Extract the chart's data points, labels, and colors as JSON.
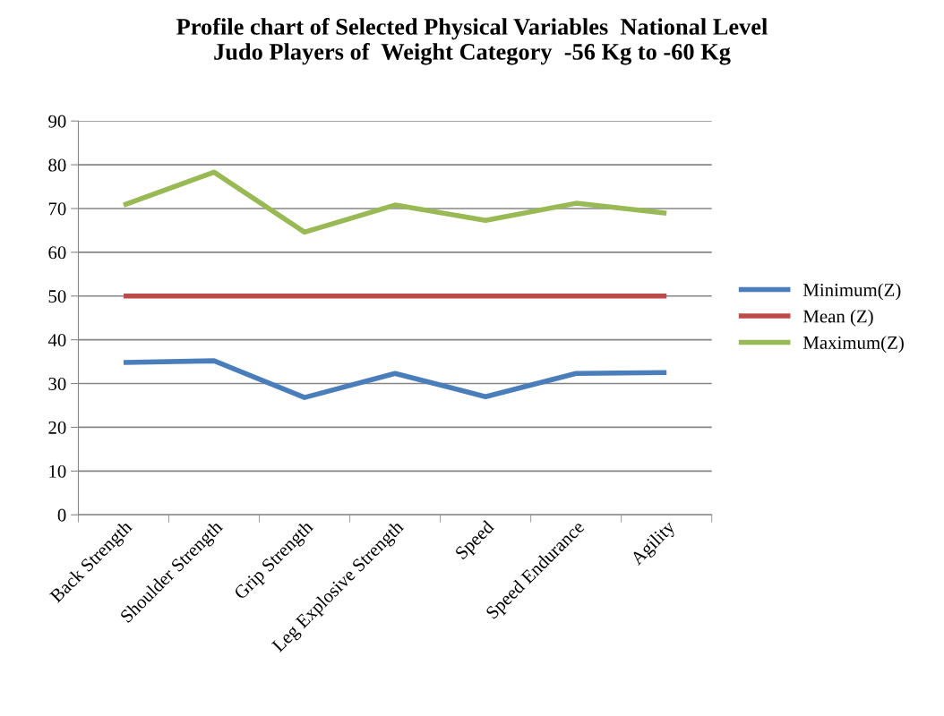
{
  "chart_data": {
    "type": "line",
    "title": "Profile chart of Selected Physical Variables  National Level\nJudo Players of  Weight Category  -56 Kg to -60 Kg",
    "categories": [
      "Back Strength",
      "Shoulder Strength",
      "Grip Strength",
      "Leg Explosive Strength",
      "Speed",
      "Speed Endurance",
      "Agility"
    ],
    "series": [
      {
        "name": "Minimum(Z)",
        "color": "#4a7ebb",
        "values": [
          34.8,
          35.2,
          26.8,
          32.3,
          27.0,
          32.3,
          32.5
        ]
      },
      {
        "name": "Mean (Z)",
        "color": "#be4b48",
        "values": [
          50,
          50,
          50,
          50,
          50,
          50,
          50
        ]
      },
      {
        "name": "Maximum(Z)",
        "color": "#98b954",
        "values": [
          70.8,
          78.3,
          64.6,
          70.8,
          67.3,
          71.2,
          68.9
        ]
      }
    ],
    "ylim": [
      0,
      90
    ],
    "yticks": [
      0,
      10,
      20,
      30,
      40,
      50,
      60,
      70,
      80,
      90
    ],
    "grid": "y",
    "legend": "right",
    "marker": "none",
    "line_style": "solid"
  }
}
